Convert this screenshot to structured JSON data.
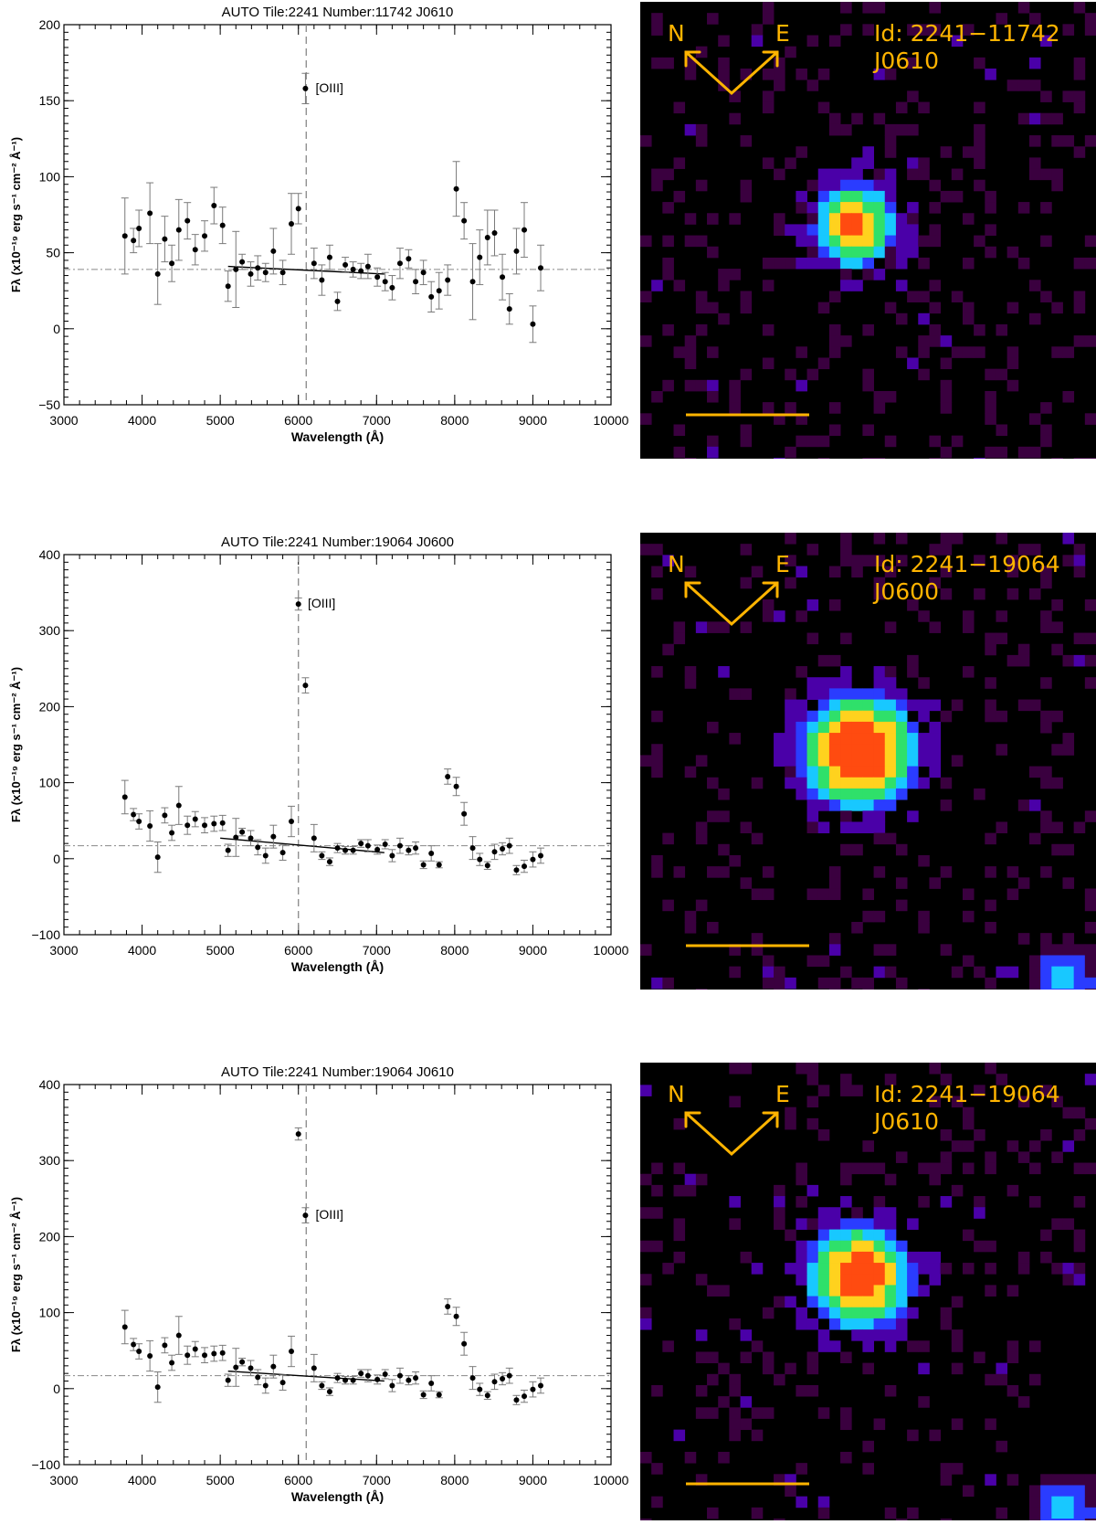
{
  "colors": {
    "compass": "#ffb400",
    "marker": "#000000",
    "errorbar": "#7a7a7a",
    "refline": "#888888",
    "image_background": "#000000",
    "image_noise": "#3a003f",
    "image_mid": "#4a00a8",
    "image_core": "#ff4b10"
  },
  "icons": [
    "compass-arrow-north-icon",
    "compass-arrow-east-icon",
    "scale-bar"
  ],
  "panels": [
    {
      "compass": {
        "north": "N",
        "east": "E"
      },
      "id_label": "Id: 2241−11742",
      "filter_label": "J0610"
    },
    {
      "compass": {
        "north": "N",
        "east": "E"
      },
      "id_label": "Id: 2241−19064",
      "filter_label": "J0600"
    },
    {
      "compass": {
        "north": "N",
        "east": "E"
      },
      "id_label": "Id: 2241−19064",
      "filter_label": "J0610"
    }
  ],
  "chart_data": [
    {
      "type": "scatter",
      "title": "AUTO Tile:2241 Number:11742 J0610",
      "xlabel": "Wavelength (Å)",
      "ylabel": "Fλ (x10⁻¹⁹ erg s⁻¹ cm⁻² Å⁻¹)",
      "xlim": [
        3000,
        10000
      ],
      "ylim": [
        -50,
        200
      ],
      "xticks": [
        3000,
        4000,
        5000,
        6000,
        7000,
        8000,
        9000,
        10000
      ],
      "yticks": [
        -50,
        0,
        50,
        100,
        150,
        200
      ],
      "vline": 6100,
      "hline": 39,
      "fit": {
        "x": [
          5100,
          7100
        ],
        "y": [
          41,
          36
        ]
      },
      "annotation": {
        "text": "[OIII]",
        "x": 6220,
        "y": 158
      },
      "points": [
        [
          3780,
          61,
          25
        ],
        [
          3890,
          58,
          8
        ],
        [
          3960,
          66,
          12
        ],
        [
          4100,
          76,
          20
        ],
        [
          4200,
          36,
          20
        ],
        [
          4290,
          59,
          15
        ],
        [
          4380,
          43,
          12
        ],
        [
          4470,
          65,
          20
        ],
        [
          4580,
          71,
          12
        ],
        [
          4680,
          52,
          10
        ],
        [
          4800,
          61,
          10
        ],
        [
          4920,
          81,
          12
        ],
        [
          5030,
          68,
          12
        ],
        [
          5100,
          28,
          10
        ],
        [
          5200,
          39,
          25
        ],
        [
          5280,
          44,
          5
        ],
        [
          5390,
          36,
          8
        ],
        [
          5480,
          40,
          8
        ],
        [
          5580,
          37,
          6
        ],
        [
          5680,
          51,
          15
        ],
        [
          5800,
          37,
          8
        ],
        [
          5910,
          69,
          20
        ],
        [
          6000,
          79,
          10
        ],
        [
          6090,
          158,
          10
        ],
        [
          6200,
          43,
          10
        ],
        [
          6300,
          32,
          10
        ],
        [
          6400,
          47,
          8
        ],
        [
          6500,
          18,
          6
        ],
        [
          6600,
          42,
          5
        ],
        [
          6700,
          39,
          5
        ],
        [
          6800,
          38,
          5
        ],
        [
          6890,
          41,
          8
        ],
        [
          7010,
          34,
          6
        ],
        [
          7110,
          31,
          6
        ],
        [
          7200,
          27,
          8
        ],
        [
          7300,
          43,
          10
        ],
        [
          7410,
          46,
          6
        ],
        [
          7500,
          31,
          8
        ],
        [
          7600,
          37,
          8
        ],
        [
          7700,
          21,
          10
        ],
        [
          7800,
          25,
          12
        ],
        [
          7910,
          32,
          10
        ],
        [
          8020,
          92,
          18
        ],
        [
          8120,
          71,
          12
        ],
        [
          8230,
          31,
          25
        ],
        [
          8320,
          47,
          18
        ],
        [
          8420,
          60,
          18
        ],
        [
          8510,
          63,
          15
        ],
        [
          8610,
          34,
          15
        ],
        [
          8700,
          13,
          10
        ],
        [
          8790,
          51,
          15
        ],
        [
          8890,
          65,
          18
        ],
        [
          9000,
          3,
          12
        ],
        [
          9100,
          40,
          15
        ]
      ]
    },
    {
      "type": "scatter",
      "title": "AUTO Tile:2241 Number:19064 J0600",
      "xlabel": "Wavelength (Å)",
      "ylabel": "Fλ (x10⁻¹⁹ erg s⁻¹ cm⁻² Å⁻¹)",
      "xlim": [
        3000,
        10000
      ],
      "ylim": [
        -100,
        400
      ],
      "xticks": [
        3000,
        4000,
        5000,
        6000,
        7000,
        8000,
        9000,
        10000
      ],
      "yticks": [
        -100,
        0,
        100,
        200,
        300,
        400
      ],
      "vline": 6000,
      "hline": 17,
      "fit": {
        "x": [
          5000,
          7100
        ],
        "y": [
          27,
          8
        ]
      },
      "annotation": {
        "text": "[OIII]",
        "x": 6120,
        "y": 335
      },
      "points": [
        [
          3780,
          81,
          22
        ],
        [
          3890,
          58,
          8
        ],
        [
          3960,
          49,
          10
        ],
        [
          4100,
          43,
          20
        ],
        [
          4200,
          2,
          20
        ],
        [
          4290,
          57,
          10
        ],
        [
          4380,
          34,
          10
        ],
        [
          4470,
          70,
          25
        ],
        [
          4580,
          44,
          12
        ],
        [
          4680,
          52,
          10
        ],
        [
          4800,
          44,
          10
        ],
        [
          4920,
          46,
          10
        ],
        [
          5030,
          47,
          10
        ],
        [
          5100,
          11,
          8
        ],
        [
          5200,
          28,
          25
        ],
        [
          5280,
          35,
          5
        ],
        [
          5390,
          27,
          10
        ],
        [
          5480,
          15,
          10
        ],
        [
          5580,
          4,
          10
        ],
        [
          5680,
          29,
          15
        ],
        [
          5800,
          8,
          10
        ],
        [
          5910,
          49,
          20
        ],
        [
          6000,
          335,
          8
        ],
        [
          6090,
          228,
          10
        ],
        [
          6200,
          27,
          18
        ],
        [
          6300,
          4,
          5
        ],
        [
          6400,
          -4,
          5
        ],
        [
          6500,
          14,
          6
        ],
        [
          6600,
          11,
          5
        ],
        [
          6700,
          11,
          5
        ],
        [
          6800,
          20,
          5
        ],
        [
          6890,
          17,
          8
        ],
        [
          7010,
          12,
          6
        ],
        [
          7110,
          19,
          6
        ],
        [
          7200,
          4,
          8
        ],
        [
          7300,
          17,
          10
        ],
        [
          7410,
          11,
          6
        ],
        [
          7500,
          14,
          8
        ],
        [
          7600,
          -8,
          5
        ],
        [
          7700,
          7,
          10
        ],
        [
          7800,
          -8,
          4
        ],
        [
          7910,
          108,
          10
        ],
        [
          8020,
          95,
          12
        ],
        [
          8120,
          59,
          15
        ],
        [
          8230,
          14,
          15
        ],
        [
          8320,
          -1,
          8
        ],
        [
          8420,
          -9,
          5
        ],
        [
          8510,
          9,
          10
        ],
        [
          8610,
          13,
          8
        ],
        [
          8700,
          17,
          10
        ],
        [
          8790,
          -15,
          6
        ],
        [
          8890,
          -10,
          8
        ],
        [
          9000,
          -1,
          10
        ],
        [
          9100,
          4,
          10
        ]
      ]
    },
    {
      "type": "scatter",
      "title": "AUTO Tile:2241 Number:19064 J0610",
      "xlabel": "Wavelength (Å)",
      "ylabel": "Fλ (x10⁻¹⁹ erg s⁻¹ cm⁻² Å⁻¹)",
      "xlim": [
        3000,
        10000
      ],
      "ylim": [
        -100,
        400
      ],
      "xticks": [
        3000,
        4000,
        5000,
        6000,
        7000,
        8000,
        9000,
        10000
      ],
      "yticks": [
        -100,
        0,
        100,
        200,
        300,
        400
      ],
      "vline": 6100,
      "hline": 17,
      "fit": {
        "x": [
          5100,
          7100
        ],
        "y": [
          23,
          10
        ]
      },
      "annotation": {
        "text": "[OIII]",
        "x": 6220,
        "y": 228
      },
      "points": [
        [
          3780,
          81,
          22
        ],
        [
          3890,
          58,
          8
        ],
        [
          3960,
          49,
          10
        ],
        [
          4100,
          43,
          20
        ],
        [
          4200,
          2,
          20
        ],
        [
          4290,
          57,
          10
        ],
        [
          4380,
          34,
          10
        ],
        [
          4470,
          70,
          25
        ],
        [
          4580,
          44,
          12
        ],
        [
          4680,
          52,
          10
        ],
        [
          4800,
          44,
          10
        ],
        [
          4920,
          46,
          10
        ],
        [
          5030,
          47,
          10
        ],
        [
          5100,
          11,
          8
        ],
        [
          5200,
          28,
          25
        ],
        [
          5280,
          35,
          5
        ],
        [
          5390,
          27,
          10
        ],
        [
          5480,
          15,
          10
        ],
        [
          5580,
          4,
          10
        ],
        [
          5680,
          29,
          15
        ],
        [
          5800,
          8,
          10
        ],
        [
          5910,
          49,
          20
        ],
        [
          6000,
          335,
          8
        ],
        [
          6090,
          228,
          10
        ],
        [
          6200,
          27,
          18
        ],
        [
          6300,
          4,
          5
        ],
        [
          6400,
          -4,
          5
        ],
        [
          6500,
          14,
          6
        ],
        [
          6600,
          11,
          5
        ],
        [
          6700,
          11,
          5
        ],
        [
          6800,
          20,
          5
        ],
        [
          6890,
          17,
          8
        ],
        [
          7010,
          12,
          6
        ],
        [
          7110,
          19,
          6
        ],
        [
          7200,
          4,
          8
        ],
        [
          7300,
          17,
          10
        ],
        [
          7410,
          11,
          6
        ],
        [
          7500,
          14,
          8
        ],
        [
          7600,
          -8,
          5
        ],
        [
          7700,
          7,
          10
        ],
        [
          7800,
          -8,
          4
        ],
        [
          7910,
          108,
          10
        ],
        [
          8020,
          95,
          12
        ],
        [
          8120,
          59,
          15
        ],
        [
          8230,
          14,
          15
        ],
        [
          8320,
          -1,
          8
        ],
        [
          8420,
          -9,
          5
        ],
        [
          8510,
          9,
          10
        ],
        [
          8610,
          13,
          8
        ],
        [
          8700,
          17,
          10
        ],
        [
          8790,
          -15,
          6
        ],
        [
          8890,
          -10,
          8
        ],
        [
          9000,
          -1,
          10
        ],
        [
          9100,
          4,
          10
        ]
      ]
    }
  ]
}
